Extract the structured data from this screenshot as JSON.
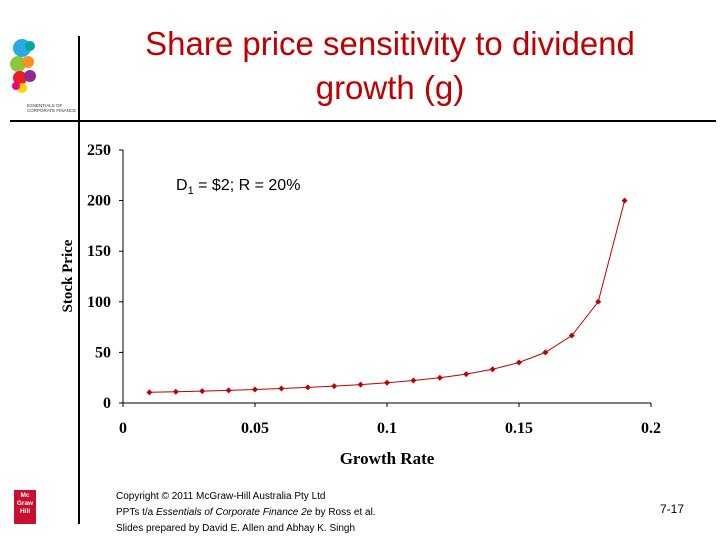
{
  "slide": {
    "title_line1": "Share price sensitivity to dividend",
    "title_line2": "growth (g)",
    "title_color": "#C00000",
    "logo_text_line1": "ESSENTIALS OF",
    "logo_text_line2": "CORPORATE FINANCE",
    "publisher_logo": {
      "line1": "Mc",
      "line2": "Graw",
      "line3": "Hill"
    },
    "page_number": "7-17"
  },
  "footer": {
    "line1": "Copyright © 2011 McGraw-Hill Australia Pty Ltd",
    "line2_prefix": "PPTs t/a ",
    "line2_italic": "Essentials of Corporate Finance 2e",
    "line2_suffix": " by Ross et al.",
    "line3": "Slides prepared by David E. Allen and Abhay K. Singh"
  },
  "chart_data": {
    "type": "line",
    "title": "",
    "xlabel": "Growth Rate",
    "ylabel": "Stock Price",
    "xlim": [
      0,
      0.2
    ],
    "ylim": [
      0,
      250
    ],
    "xticks": [
      0,
      0.05,
      0.1,
      0.15,
      0.2
    ],
    "xtick_labels": [
      "0",
      "0.05",
      "0.1",
      "0.15",
      "0.2"
    ],
    "yticks": [
      0,
      50,
      100,
      150,
      200,
      250
    ],
    "ytick_labels": [
      "0",
      "50",
      "100",
      "150",
      "200",
      "250"
    ],
    "grid": false,
    "marker": "diamond",
    "color": "#C00000",
    "annotation": {
      "prefix": "D",
      "subscript": "1",
      "suffix": " = $2; R = 20%"
    },
    "series": [
      {
        "name": "Stock Price",
        "x": [
          0.01,
          0.02,
          0.03,
          0.04,
          0.05,
          0.06,
          0.07,
          0.08,
          0.09,
          0.1,
          0.11,
          0.12,
          0.13,
          0.14,
          0.15,
          0.16,
          0.17,
          0.18,
          0.19
        ],
        "y": [
          10.53,
          11.11,
          11.76,
          12.5,
          13.33,
          14.29,
          15.38,
          16.67,
          18.18,
          20.0,
          22.22,
          25.0,
          28.57,
          33.33,
          40.0,
          50.0,
          66.67,
          100.0,
          200.0
        ]
      }
    ]
  }
}
